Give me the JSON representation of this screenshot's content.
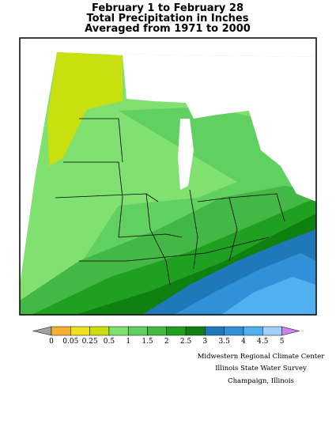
{
  "header": {
    "lines": [
      "February 1 to February 28",
      "Total Precipitation in Inches",
      "Averaged from 1971 to 2000"
    ]
  },
  "legend": {
    "under_color": "#a0a0a0",
    "over_color": "#d080f0",
    "colors": [
      "#f4b030",
      "#f0e020",
      "#c8e010",
      "#80e070",
      "#60d060",
      "#44b844",
      "#20a020",
      "#108010",
      "#1f78b8",
      "#3090d8",
      "#50b0f0",
      "#a0d0f8"
    ],
    "labels": [
      "0",
      "0.05",
      "0.25",
      "0.5",
      "1",
      "1.5",
      "2",
      "2.5",
      "3",
      "3.5",
      "4",
      "4.5",
      "5"
    ]
  },
  "credits": [
    "Midwestern Regional Climate Center",
    "Illinois State Water Survey",
    "Champaign, Illinois"
  ]
}
